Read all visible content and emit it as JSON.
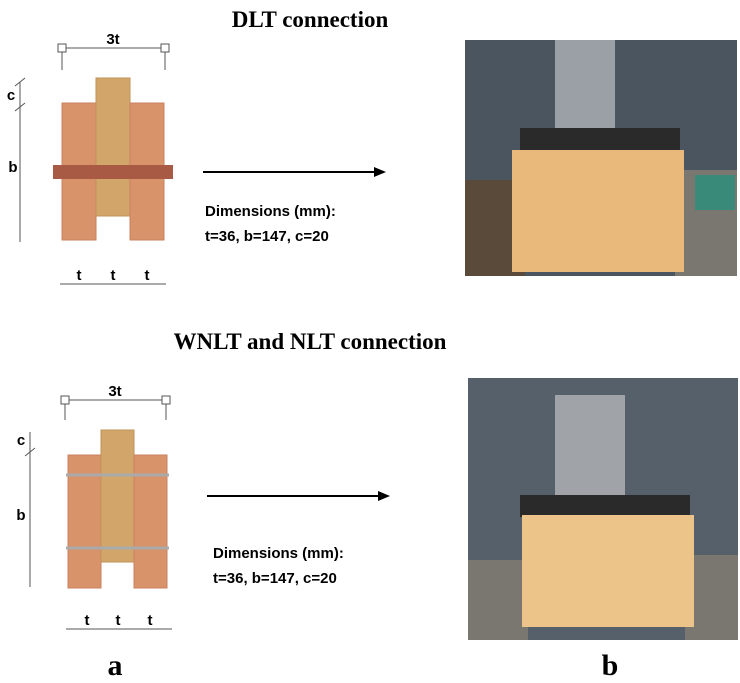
{
  "panels": [
    {
      "title": "DLT connection",
      "width_label": "3t",
      "c_label": "c",
      "b_label": "b",
      "t_labels": [
        "t",
        "t",
        "t"
      ],
      "dimensions_heading": "Dimensions (mm):",
      "dimensions": "t=36, b=147, c=20"
    },
    {
      "title": "WNLT and NLT connection",
      "width_label": "3t",
      "c_label": "c",
      "b_label": "b",
      "t_labels": [
        "t",
        "t",
        "t"
      ],
      "dimensions_heading": "Dimensions (mm):",
      "dimensions": "t=36, b=147, c=20"
    }
  ],
  "labels": [
    "a",
    "b"
  ]
}
